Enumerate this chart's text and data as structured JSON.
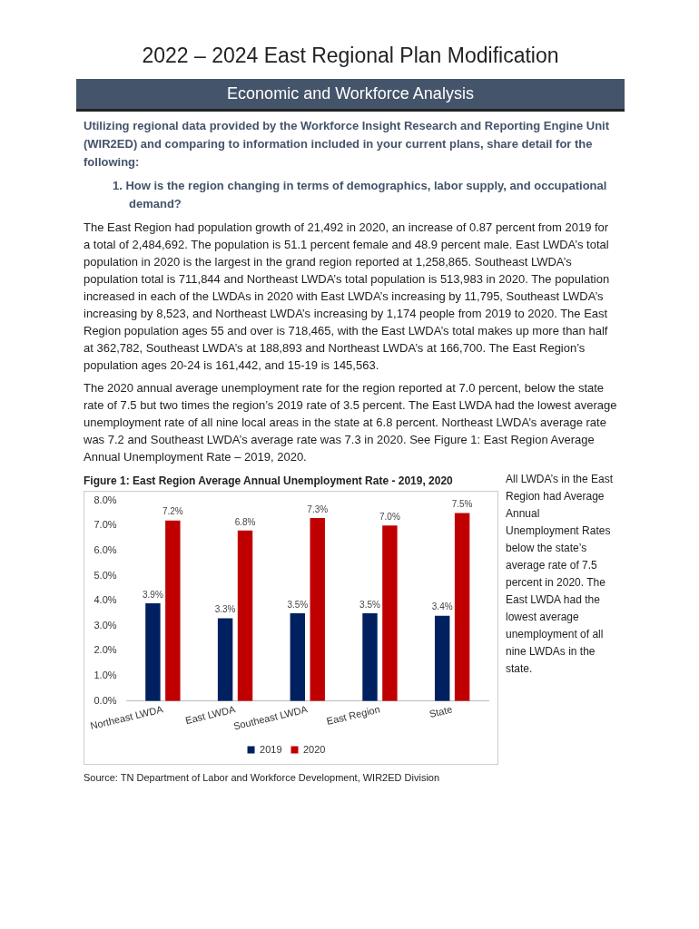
{
  "chart_data": {
    "type": "bar",
    "title": "Figure 1: East Region Average Annual Unemployment Rate - 2019, 2020",
    "annotations": [
      "2022 – 2024 East Regional Plan Modification",
      "Economic and Workforce Analysis",
      "Utilizing regional data provided by the Workforce Insight Research and Reporting Engine Unit (WIR2ED) and comparing to information included in your current plans, share detail for the following:",
      "1.  How is the region changing in terms of demographics, labor supply, and occupational demand?",
      "The East Region had population growth of 21,492 in 2020, an increase of 0.87 percent from 2019 for a total of 2,484,692. The population is 51.1 percent female and 48.9 percent male. East LWDA’s total population in 2020 is the largest in the grand region reported at 1,258,865. Southeast LWDA’s population total is 711,844 and Northeast LWDA’s total population is 513,983 in 2020. The population increased in each of the LWDAs in 2020 with East LWDA’s increasing by 11,795, Southeast LWDA’s increasing by 8,523, and Northeast LWDA’s increasing by 1,174 people from 2019 to 2020. The East Region population ages 55 and over is 718,465, with the East LWDA’s total makes up more than half at 362,782, Southeast LWDA’s at 188,893 and Northeast LWDA’s at 166,700. The East Region’s population ages 20-24 is 161,442, and 15-19 is 145,563.",
      "The 2020 annual average unemployment rate for the region reported at 7.0 percent, below the state rate of 7.5 but two times the region’s 2019 rate of 3.5 percent. The East LWDA had the lowest average unemployment rate of all nine local areas in the state at 6.8 percent. Northeast LWDA’s average rate was 7.2 and Southeast LWDA’s average rate was 7.3 in 2020.  See Figure 1: East Region Average Annual Unemployment Rate – 2019, 2020.",
      "All LWDA’s in the East Region had Average Annual Unemployment Rates below the state’s average rate of 7.5 percent in 2020. The East LWDA had the lowest average unemployment of all nine LWDAs in the state.",
      "Source: TN Department of Labor and Workforce Development, WIR2ED Division"
    ],
    "categories": [
      "Northeast LWDA",
      "East LWDA",
      "Southeast LWDA",
      "East Region",
      "State"
    ],
    "ylim": [
      0,
      8
    ],
    "yticks": [
      {
        "value": 0,
        "label": "0.0%"
      },
      {
        "value": 1,
        "label": "1.0%"
      },
      {
        "value": 2,
        "label": "2.0%"
      },
      {
        "value": 3,
        "label": "3.0%"
      },
      {
        "value": 4,
        "label": "4.0%"
      },
      {
        "value": 5,
        "label": "5.0%"
      },
      {
        "value": 6,
        "label": "6.0%"
      },
      {
        "value": 7,
        "label": "7.0%"
      },
      {
        "value": 8,
        "label": "8.0%"
      }
    ],
    "grid": false,
    "legend": "bottom",
    "series": [
      {
        "name": "2019",
        "color": "#002060",
        "values": [
          3.9,
          3.3,
          3.5,
          3.5,
          3.4
        ],
        "value_labels": [
          "3.9%",
          "3.3%",
          "3.5%",
          "3.5%",
          "3.4%"
        ]
      },
      {
        "name": "2020",
        "color": "#c00000",
        "values": [
          7.2,
          6.8,
          7.3,
          7.0,
          7.5
        ],
        "value_labels": [
          "7.2%",
          "6.8%",
          "7.3%",
          "7.0%",
          "7.5%"
        ]
      }
    ]
  }
}
